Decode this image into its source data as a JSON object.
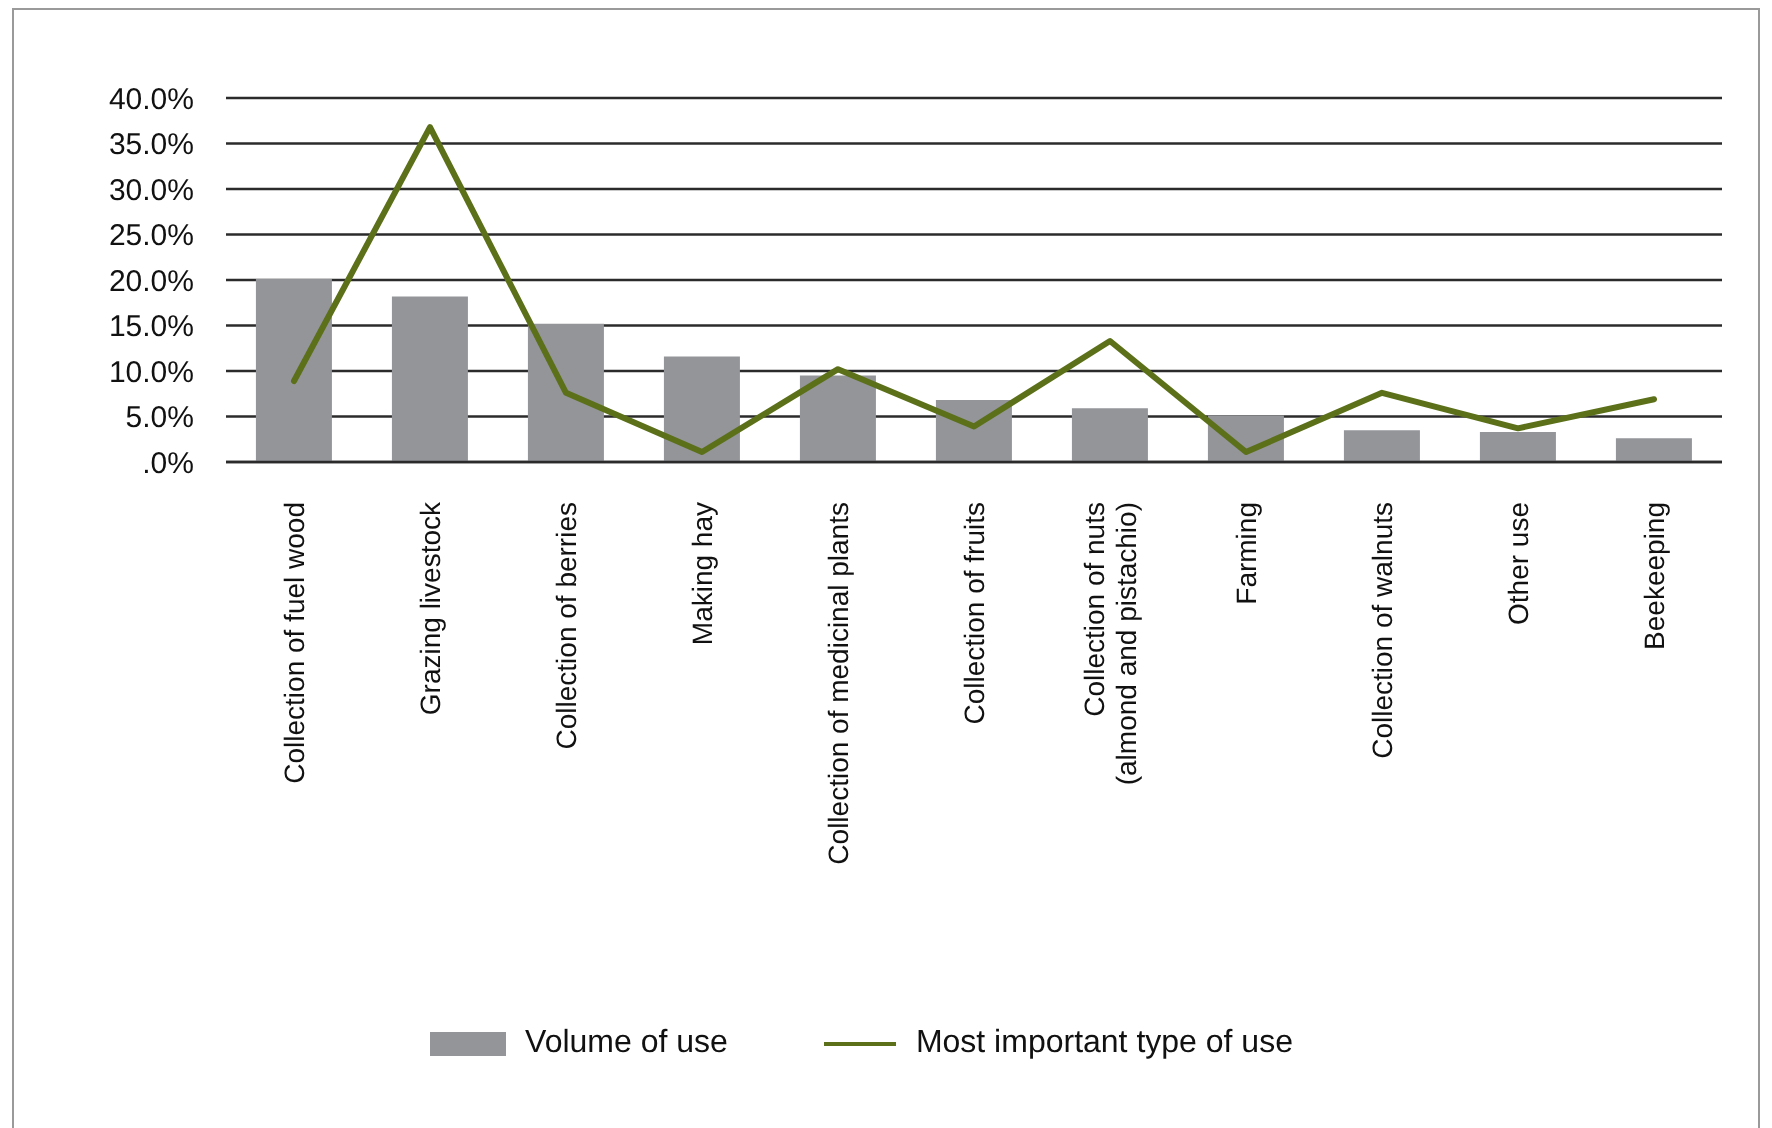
{
  "chart_data": {
    "type": "bar",
    "categories": [
      "Collection of fuel wood",
      "Grazing livestock",
      "Collection of berries",
      "Making hay",
      "Collection of medicinal plants",
      "Collection of fruits",
      "Collection of nuts (almond and pistachio)",
      "Farming",
      "Collection of walnuts",
      "Other use",
      "Beekeeping"
    ],
    "series": [
      {
        "name": "Volume of use",
        "color": "#939598",
        "values": [
          20.1,
          18.2,
          15.2,
          11.6,
          9.5,
          6.8,
          5.9,
          5.1,
          3.5,
          3.3,
          2.6
        ]
      },
      {
        "name": "Most important type of use",
        "type": "line",
        "color": "#5b7019",
        "values": [
          8.9,
          36.8,
          7.6,
          1.1,
          10.2,
          3.9,
          13.3,
          1.1,
          7.6,
          3.7,
          6.9
        ]
      }
    ],
    "ylim": [
      0,
      40
    ],
    "yticks": [
      {
        "value": 0,
        "label": ".0%"
      },
      {
        "value": 5,
        "label": "5.0%"
      },
      {
        "value": 10,
        "label": "10.0%"
      },
      {
        "value": 15,
        "label": "15.0%"
      },
      {
        "value": 20,
        "label": "20.0%"
      },
      {
        "value": 25,
        "label": "25.0%"
      },
      {
        "value": 30,
        "label": "30.0%"
      },
      {
        "value": 35,
        "label": "35.0%"
      },
      {
        "value": 40,
        "label": "40.0%"
      }
    ],
    "grid": "y",
    "legend": "bottom"
  }
}
